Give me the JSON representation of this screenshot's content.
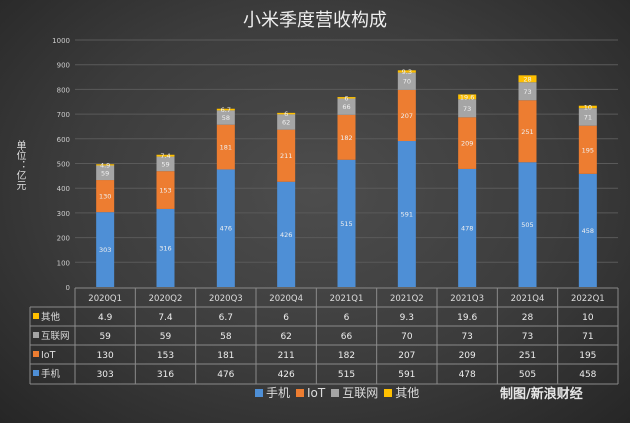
{
  "chart_data": {
    "type": "bar",
    "stacked": true,
    "title": "小米季度营收构成",
    "ylabel": "单位：亿元",
    "xlabel": "",
    "ylim": [
      0,
      1000
    ],
    "yticks": [
      0,
      100,
      200,
      300,
      400,
      500,
      600,
      700,
      800,
      900,
      1000
    ],
    "grid": true,
    "legend_position": "bottom",
    "categories": [
      "2020Q1",
      "2020Q2",
      "2020Q3",
      "2020Q4",
      "2021Q1",
      "2021Q2",
      "2021Q3",
      "2021Q4",
      "2022Q1"
    ],
    "series": [
      {
        "name": "手机",
        "color": "#4e8fd6",
        "values": [
          303,
          316,
          476,
          426,
          515,
          591,
          478,
          505,
          458
        ]
      },
      {
        "name": "IoT",
        "color": "#ed7d31",
        "values": [
          130,
          153,
          181,
          211,
          182,
          207,
          209,
          251,
          195
        ]
      },
      {
        "name": "互联网",
        "color": "#a5a5a5",
        "values": [
          59,
          59,
          58,
          62,
          66,
          70,
          73,
          73,
          71
        ]
      },
      {
        "name": "其他",
        "color": "#ffc000",
        "values": [
          4.9,
          7.4,
          6.7,
          6,
          6,
          9.3,
          19.6,
          28,
          10
        ]
      }
    ],
    "table_row_order": [
      3,
      2,
      1,
      0
    ]
  },
  "credit": "制图/新浪财经"
}
